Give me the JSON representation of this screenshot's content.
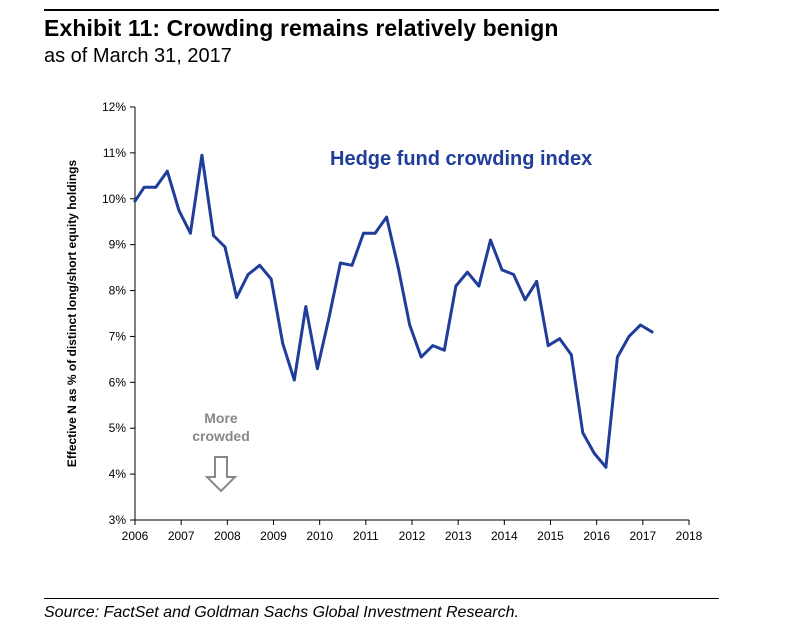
{
  "header": {
    "title": "Exhibit 11: Crowding remains relatively benign",
    "subtitle": "as of March 31, 2017"
  },
  "footer": {
    "source": "Source: FactSet and Goldman Sachs Global Investment Research."
  },
  "colors": {
    "line": "#1f3d99",
    "annotation": "#888888",
    "axis": "#000000"
  },
  "chart_data": {
    "type": "line",
    "title": "",
    "xlabel": "",
    "ylabel": "Effective N as % of distinct long/short equity holdings",
    "xlim": [
      2006,
      2018
    ],
    "ylim": [
      3,
      12
    ],
    "x_ticks": [
      2006,
      2007,
      2008,
      2009,
      2010,
      2011,
      2012,
      2013,
      2014,
      2015,
      2016,
      2017,
      2018
    ],
    "x_tick_labels": [
      "2006",
      "2007",
      "2008",
      "2009",
      "2010",
      "2011",
      "2012",
      "2013",
      "2014",
      "2015",
      "2016",
      "2017",
      "2018"
    ],
    "y_ticks": [
      3,
      4,
      5,
      6,
      7,
      8,
      9,
      10,
      11,
      12
    ],
    "y_tick_labels": [
      "3%",
      "4%",
      "5%",
      "6%",
      "7%",
      "8%",
      "9%",
      "10%",
      "11%",
      "12%"
    ],
    "grid": false,
    "series": [
      {
        "name": "Hedge fund crowding index",
        "x": [
          2006.0,
          2006.2,
          2006.45,
          2006.7,
          2006.95,
          2007.2,
          2007.45,
          2007.7,
          2007.95,
          2008.2,
          2008.45,
          2008.7,
          2008.95,
          2009.2,
          2009.45,
          2009.7,
          2009.95,
          2010.2,
          2010.45,
          2010.7,
          2010.95,
          2011.2,
          2011.45,
          2011.7,
          2011.95,
          2012.2,
          2012.45,
          2012.7,
          2012.95,
          2013.2,
          2013.45,
          2013.7,
          2013.95,
          2014.2,
          2014.45,
          2014.7,
          2014.95,
          2015.2,
          2015.45,
          2015.7,
          2015.95,
          2016.2,
          2016.45,
          2016.7,
          2016.95,
          2017.2
        ],
        "values": [
          9.95,
          10.25,
          10.25,
          10.6,
          9.75,
          9.25,
          10.95,
          9.2,
          8.95,
          7.85,
          8.35,
          8.55,
          8.25,
          6.85,
          6.05,
          7.65,
          6.3,
          7.4,
          8.6,
          8.55,
          9.25,
          9.25,
          9.6,
          8.5,
          7.25,
          6.55,
          6.8,
          6.7,
          8.1,
          8.4,
          8.1,
          9.1,
          8.45,
          8.35,
          7.8,
          8.2,
          6.8,
          6.95,
          6.6,
          4.9,
          4.45,
          4.15,
          6.55,
          7.0,
          7.25,
          7.1
        ]
      }
    ],
    "series_label": "Hedge fund crowding index",
    "annotation": {
      "line1": "More",
      "line2": "crowded",
      "arrow": "down-arrow-icon"
    }
  }
}
